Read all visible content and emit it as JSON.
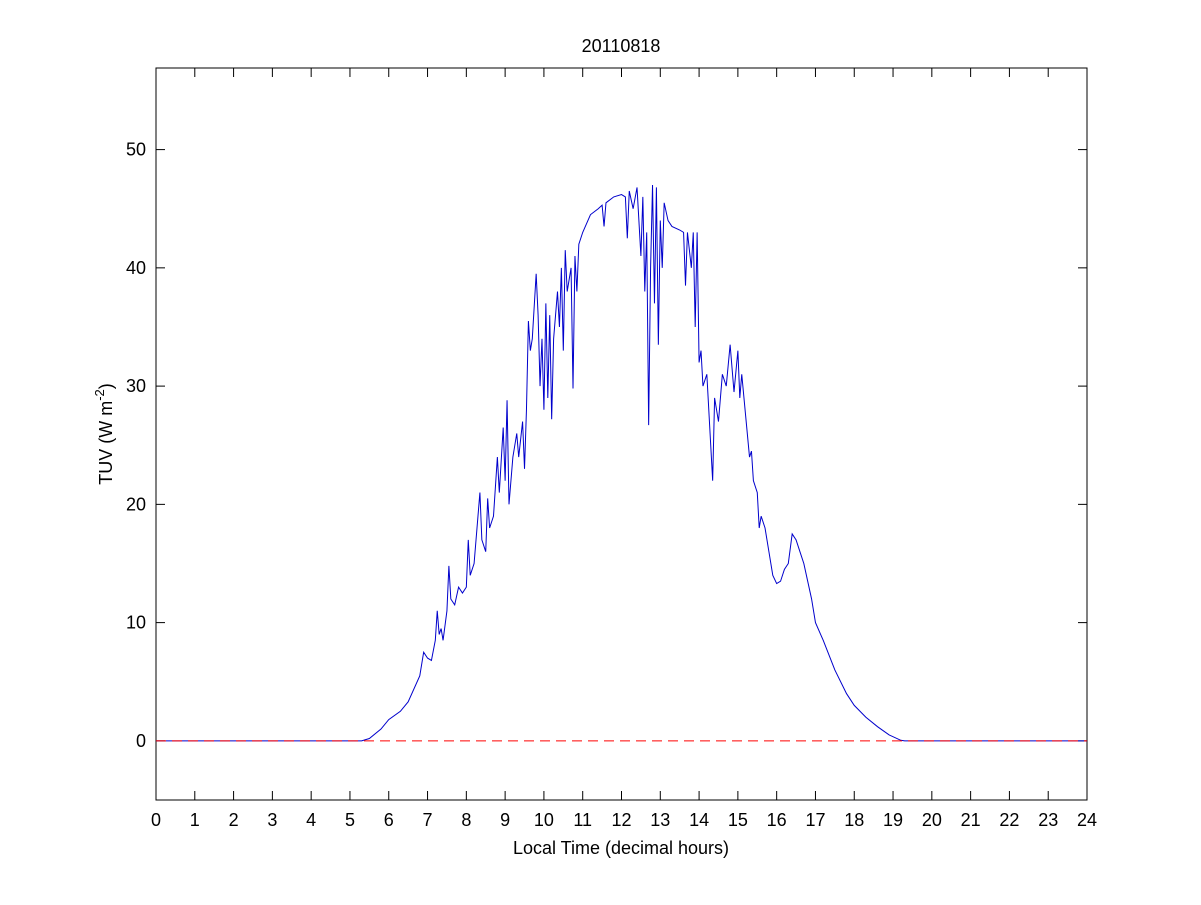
{
  "chart_data": {
    "type": "line",
    "title": "20110818",
    "xlabel": "Local Time (decimal hours)",
    "ylabel": {
      "text": "TUV (W m",
      "superscript": "-2",
      "suffix": ")"
    },
    "xlim": [
      0,
      24
    ],
    "ylim": [
      -5,
      56.9
    ],
    "xticks": [
      0,
      1,
      2,
      3,
      4,
      5,
      6,
      7,
      8,
      9,
      10,
      11,
      12,
      13,
      14,
      15,
      16,
      17,
      18,
      19,
      20,
      21,
      22,
      23,
      24
    ],
    "yticks": [
      0,
      10,
      20,
      30,
      40,
      50
    ],
    "grid": false,
    "reference_line": {
      "y": 0,
      "color": "#ff0000",
      "style": "dashed"
    },
    "series": [
      {
        "color": "#0000cc",
        "x": [
          0,
          5.3,
          5.5,
          5.8,
          6,
          6.3,
          6.5,
          6.8,
          6.9,
          7.0,
          7.1,
          7.2,
          7.25,
          7.3,
          7.35,
          7.4,
          7.5,
          7.55,
          7.6,
          7.7,
          7.8,
          7.9,
          8.0,
          8.05,
          8.1,
          8.2,
          8.3,
          8.35,
          8.4,
          8.5,
          8.55,
          8.6,
          8.7,
          8.8,
          8.85,
          8.95,
          9.0,
          9.05,
          9.1,
          9.2,
          9.3,
          9.35,
          9.45,
          9.5,
          9.55,
          9.6,
          9.65,
          9.7,
          9.8,
          9.85,
          9.9,
          9.95,
          10.0,
          10.05,
          10.1,
          10.15,
          10.2,
          10.25,
          10.35,
          10.4,
          10.45,
          10.5,
          10.55,
          10.6,
          10.7,
          10.75,
          10.8,
          10.85,
          10.9,
          11.0,
          11.2,
          11.4,
          11.5,
          11.55,
          11.6,
          11.8,
          12.0,
          12.1,
          12.15,
          12.2,
          12.3,
          12.4,
          12.5,
          12.55,
          12.6,
          12.65,
          12.7,
          12.75,
          12.8,
          12.85,
          12.9,
          12.95,
          13.0,
          13.05,
          13.1,
          13.2,
          13.3,
          13.5,
          13.6,
          13.65,
          13.7,
          13.8,
          13.85,
          13.9,
          13.95,
          14.0,
          14.05,
          14.1,
          14.2,
          14.3,
          14.35,
          14.4,
          14.5,
          14.6,
          14.7,
          14.8,
          14.9,
          15.0,
          15.05,
          15.1,
          15.2,
          15.3,
          15.35,
          15.4,
          15.5,
          15.55,
          15.6,
          15.7,
          15.8,
          15.9,
          16.0,
          16.1,
          16.2,
          16.3,
          16.4,
          16.5,
          16.6,
          16.7,
          16.8,
          16.9,
          17.0,
          17.2,
          17.5,
          17.8,
          18.0,
          18.3,
          18.6,
          18.9,
          19.2,
          19.3,
          24
        ],
        "values": [
          0,
          0,
          0.2,
          1,
          1.8,
          2.5,
          3.3,
          5.5,
          7.5,
          7,
          6.8,
          8.5,
          11,
          9,
          9.5,
          8.5,
          11,
          14.8,
          12,
          11.5,
          13,
          12.5,
          13,
          17,
          14,
          15,
          19,
          21,
          17,
          16,
          20.5,
          18,
          19,
          24,
          21,
          26.5,
          22,
          28.8,
          20,
          24,
          26,
          24,
          27,
          23,
          28,
          35.5,
          33,
          34,
          39.5,
          36,
          30,
          34,
          28,
          37,
          29,
          36,
          27.2,
          34,
          38,
          35,
          40,
          33,
          41.5,
          38,
          40,
          29.8,
          41,
          38,
          42,
          43,
          44.5,
          45,
          45.3,
          43.5,
          45.5,
          46,
          46.2,
          46,
          42.5,
          46.5,
          45,
          46.8,
          41,
          46,
          38,
          43,
          26.7,
          40,
          47,
          37,
          46.8,
          33.5,
          44,
          40,
          45.5,
          44,
          43.5,
          43.2,
          43,
          38.5,
          43,
          40,
          43,
          35,
          43,
          32,
          33,
          30,
          31,
          25,
          22,
          29,
          27,
          31,
          30,
          33.5,
          29.5,
          33,
          29,
          31,
          27.5,
          24,
          24.5,
          22,
          21,
          18,
          19,
          18,
          16,
          14,
          13.3,
          13.5,
          14.5,
          15,
          17.5,
          17,
          16,
          15,
          13.5,
          12,
          10,
          8.5,
          6,
          4,
          3,
          2,
          1.2,
          0.5,
          0.05,
          0,
          0
        ]
      }
    ]
  }
}
